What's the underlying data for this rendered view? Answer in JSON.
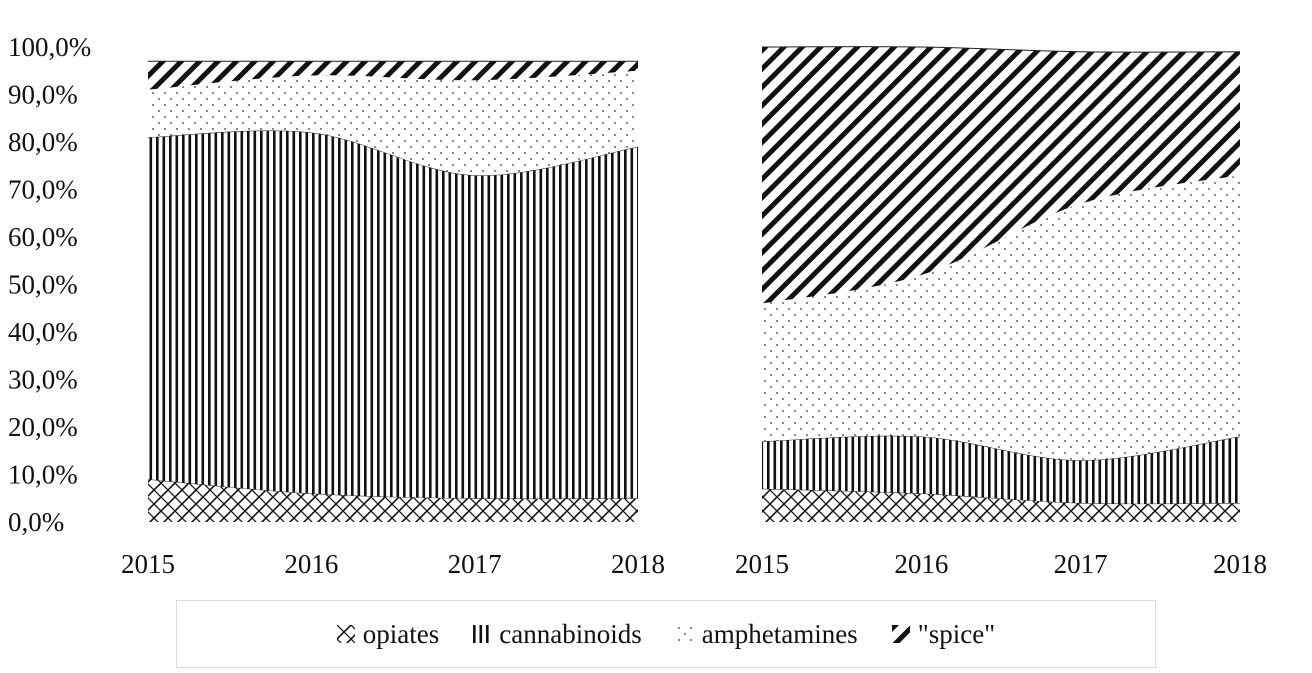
{
  "chart_data": [
    {
      "type": "area",
      "stacked": true,
      "x": [
        "2015",
        "2016",
        "2017",
        "2018"
      ],
      "y_ticks": [
        "0,0%",
        "10,0%",
        "20,0%",
        "30,0%",
        "40,0%",
        "50,0%",
        "60,0%",
        "70,0%",
        "80,0%",
        "90,0%",
        "100,0%"
      ],
      "ylim": [
        0,
        100
      ],
      "series": [
        {
          "name": "opiates",
          "values": [
            9,
            6,
            5,
            5
          ]
        },
        {
          "name": "cannabinoids",
          "values": [
            72,
            76,
            68,
            74
          ]
        },
        {
          "name": "amphetamines",
          "values": [
            10,
            12,
            20,
            16
          ]
        },
        {
          "name": "\"spice\"",
          "values": [
            6,
            3,
            4,
            2
          ]
        }
      ]
    },
    {
      "type": "area",
      "stacked": true,
      "x": [
        "2015",
        "2016",
        "2017",
        "2018"
      ],
      "ylim": [
        0,
        100
      ],
      "series": [
        {
          "name": "opiates",
          "values": [
            7,
            6,
            4,
            4
          ]
        },
        {
          "name": "cannabinoids",
          "values": [
            10,
            12,
            9,
            14
          ]
        },
        {
          "name": "amphetamines",
          "values": [
            29,
            34,
            54,
            55
          ]
        },
        {
          "name": "\"spice\"",
          "values": [
            54,
            48,
            32,
            26
          ]
        }
      ]
    }
  ],
  "legend": {
    "placement": "bottom",
    "items": [
      {
        "label": "opiates",
        "pattern": "crosshatch"
      },
      {
        "label": "cannabinoids",
        "pattern": "vertical-lines"
      },
      {
        "label": "amphetamines",
        "pattern": "dots"
      },
      {
        "label": "\"spice\"",
        "pattern": "diagonal-bold"
      }
    ]
  },
  "colors": {
    "ink": "#111111",
    "background": "#ffffff"
  }
}
